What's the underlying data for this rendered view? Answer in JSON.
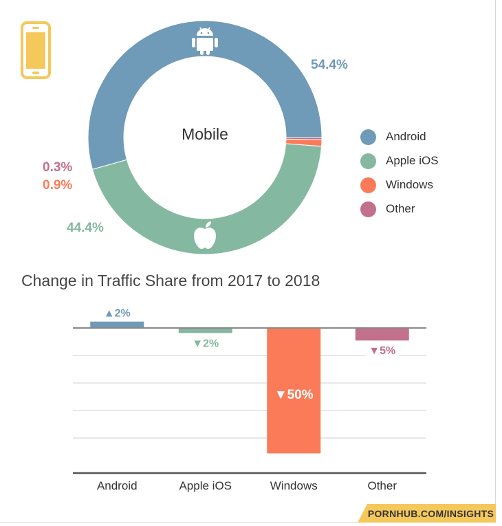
{
  "colors": {
    "android": "#6f9ab8",
    "ios": "#85b8a0",
    "windows": "#fb7b59",
    "other": "#c2708b",
    "phone_icon": "#f5c85c",
    "footer_bg": "#f5c85c"
  },
  "icons": {
    "phone": "smartphone-icon",
    "android": "android-icon",
    "apple": "apple-icon"
  },
  "chart_data": [
    {
      "type": "pie",
      "variant": "donut",
      "title": "Mobile",
      "slices": [
        {
          "name": "Android",
          "value": 54.4,
          "label": "54.4%",
          "color": "#6f9ab8"
        },
        {
          "name": "Apple iOS",
          "value": 44.4,
          "label": "44.4%",
          "color": "#85b8a0"
        },
        {
          "name": "Windows",
          "value": 0.9,
          "label": "0.9%",
          "color": "#fb7b59"
        },
        {
          "name": "Other",
          "value": 0.3,
          "label": "0.3%",
          "color": "#c2708b"
        }
      ],
      "legend": {
        "placement": "right",
        "entries": [
          "Android",
          "Apple iOS",
          "Windows",
          "Other"
        ]
      }
    },
    {
      "type": "bar",
      "title": "Change in Traffic Share from 2017 to 2018",
      "categories": [
        "Android",
        "Apple iOS",
        "Windows",
        "Other"
      ],
      "values": [
        2,
        -2,
        -50,
        -5
      ],
      "value_labels": [
        "▲2%",
        "▼2%",
        "▼50%",
        "▼5%"
      ],
      "colors": [
        "#6f9ab8",
        "#85b8a0",
        "#fb7b59",
        "#c2708b"
      ],
      "ylim": [
        -54,
        3
      ],
      "grid": true,
      "xlabel": "",
      "ylabel": ""
    }
  ],
  "footer": {
    "text": "PORNHUB.COM/INSIGHTS"
  }
}
